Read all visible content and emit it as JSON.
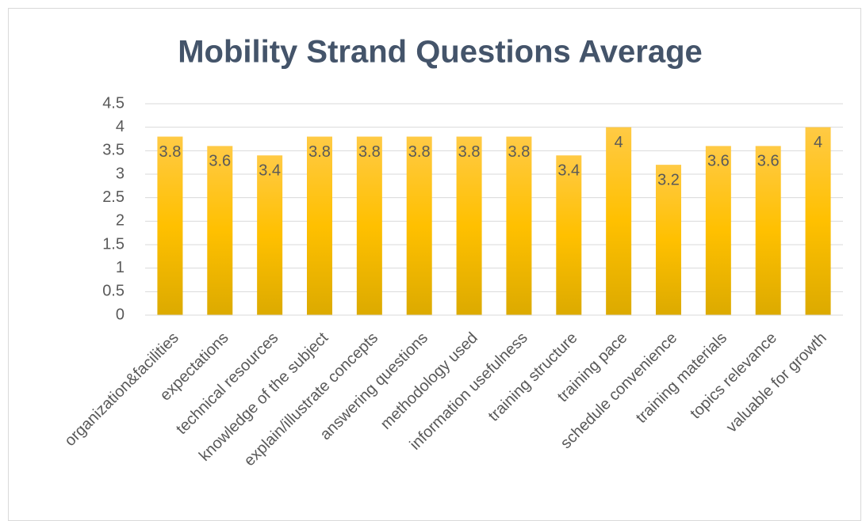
{
  "chart_data": {
    "type": "bar",
    "title": "Mobility Strand Questions Average",
    "categories": [
      "organization&facilities",
      "expectations",
      "technical resources",
      "knowledge of the subject",
      "explain/illustrate concepts",
      "answering questions",
      "methodology used",
      "information usefulness",
      "training structure",
      "training pace",
      "schedule convenience",
      "training materials",
      "topics relevance",
      "valuable for growth"
    ],
    "values": [
      3.8,
      3.6,
      3.4,
      3.8,
      3.8,
      3.8,
      3.8,
      3.8,
      3.4,
      4,
      3.2,
      3.6,
      3.6,
      4
    ],
    "color": "#ffc000",
    "ylim": [
      0,
      4.5
    ],
    "yticks": [
      0,
      0.5,
      1,
      1.5,
      2,
      2.5,
      3,
      3.5,
      4,
      4.5
    ],
    "grid": true
  }
}
